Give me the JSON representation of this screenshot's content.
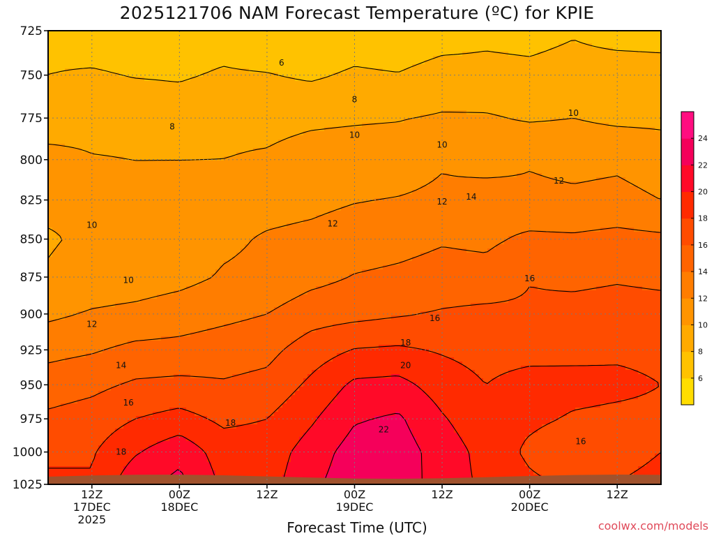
{
  "title": "2025121706 NAM Forecast Temperature (ºC) for KPIE",
  "credit": "coolwx.com/models",
  "colors": {
    "terrain": "#a0522d",
    "frame": "#000000",
    "grid": "#7a7a7a",
    "contour": "#000000",
    "credit": "#e04a5a"
  },
  "chart_data": {
    "type": "heatmap",
    "title": "2025121706 NAM Forecast Temperature (ºC) for KPIE",
    "xlabel": "Forecast Time (UTC)",
    "ylabel": "",
    "ylog": true,
    "y_ticks": [
      725,
      750,
      775,
      800,
      825,
      850,
      875,
      900,
      925,
      950,
      975,
      1000,
      1025
    ],
    "ylim": [
      725,
      1025
    ],
    "x_ticks": [
      {
        "hour": 6,
        "lines": [
          "12Z",
          "17DEC",
          "2025"
        ]
      },
      {
        "hour": 18,
        "lines": [
          "00Z",
          "18DEC"
        ]
      },
      {
        "hour": 30,
        "lines": [
          "12Z"
        ]
      },
      {
        "hour": 42,
        "lines": [
          "00Z",
          "19DEC"
        ]
      },
      {
        "hour": 54,
        "lines": [
          "12Z"
        ]
      },
      {
        "hour": 66,
        "lines": [
          "00Z",
          "20DEC"
        ]
      },
      {
        "hour": 78,
        "lines": [
          "12Z"
        ]
      }
    ],
    "xlim": [
      0,
      84
    ],
    "grid": true,
    "colorbar": {
      "ticks": [
        6,
        8,
        10,
        12,
        14,
        16,
        18,
        20,
        22,
        24
      ],
      "levels": [
        4,
        6,
        8,
        10,
        12,
        14,
        16,
        18,
        20,
        22,
        24,
        26
      ],
      "colors": [
        "#ffdd00",
        "#ffc200",
        "#ffaa00",
        "#ff9400",
        "#ff7d00",
        "#ff6400",
        "#ff4c00",
        "#ff2a00",
        "#ff0a28",
        "#f5005a",
        "#ff0d80"
      ],
      "placement": "right"
    },
    "pressure_levels": [
      725,
      750,
      775,
      800,
      825,
      850,
      875,
      900,
      925,
      950,
      975,
      1000,
      1025
    ],
    "hours": [
      0,
      6,
      12,
      18,
      24,
      30,
      36,
      42,
      48,
      54,
      60,
      66,
      72,
      78,
      84
    ],
    "temperature": [
      [
        7.5,
        7.0,
        7.0,
        7.0,
        7.2,
        6.5,
        6.2,
        6.8,
        6.5,
        7.0,
        7.5,
        7.3,
        7.8,
        7.2,
        7.2
      ],
      [
        8.0,
        8.2,
        7.9,
        7.8,
        8.2,
        8.1,
        7.7,
        8.3,
        8.1,
        8.8,
        8.6,
        8.5,
        8.8,
        9.0,
        8.8
      ],
      [
        9.0,
        9.4,
        9.3,
        9.0,
        9.6,
        9.5,
        9.7,
        9.8,
        9.9,
        10.2,
        10.2,
        9.8,
        10.0,
        9.6,
        9.6
      ],
      [
        10.6,
        10.1,
        10.0,
        10.0,
        10.0,
        10.2,
        10.7,
        10.9,
        11.0,
        11.8,
        11.0,
        11.8,
        11.4,
        11.6,
        11.0
      ],
      [
        10.5,
        10.3,
        10.0,
        10.3,
        11.2,
        11.3,
        11.5,
        11.9,
        12.1,
        12.4,
        13.2,
        12.5,
        12.4,
        12.6,
        12.0
      ],
      [
        9.8,
        10.4,
        10.6,
        10.8,
        11.6,
        12.2,
        12.5,
        13.0,
        13.3,
        13.8,
        13.6,
        14.4,
        14.3,
        14.6,
        14.4
      ],
      [
        10.2,
        10.8,
        11.0,
        11.4,
        12.2,
        12.5,
        13.4,
        14.1,
        14.4,
        14.8,
        14.7,
        15.9,
        15.6,
        15.8,
        15.6
      ],
      [
        11.6,
        12.2,
        12.5,
        13.0,
        13.5,
        14.0,
        15.1,
        15.4,
        15.8,
        16.2,
        16.5,
        16.3,
        16.6,
        16.8,
        16.7
      ],
      [
        13.4,
        13.8,
        14.5,
        14.6,
        15.0,
        15.4,
        17.0,
        18.1,
        18.3,
        17.8,
        17.3,
        17.3,
        17.5,
        17.7,
        17.6
      ],
      [
        15.0,
        15.5,
        16.3,
        16.5,
        16.2,
        16.6,
        18.4,
        20.4,
        20.6,
        19.1,
        18.0,
        18.8,
        18.6,
        18.4,
        18.0
      ],
      [
        16.4,
        16.9,
        18.0,
        18.7,
        17.6,
        18.0,
        19.7,
        21.8,
        22.3,
        20.2,
        18.6,
        18.4,
        17.8,
        17.6,
        17.6
      ],
      [
        17.6,
        17.8,
        19.8,
        21.4,
        19.0,
        18.9,
        20.9,
        22.9,
        23.0,
        21.1,
        19.3,
        17.6,
        16.6,
        16.8,
        18.0
      ],
      [
        18.4,
        18.2,
        21.5,
        22.6,
        19.6,
        19.2,
        21.5,
        23.3,
        23.2,
        21.0,
        19.6,
        18.4,
        17.7,
        18.1,
        19.0
      ]
    ],
    "contour_labels": [
      {
        "text": "6",
        "x": 32.0,
        "y": 743
      },
      {
        "text": "8",
        "x": 42.0,
        "y": 764
      },
      {
        "text": "8",
        "x": 17.0,
        "y": 780
      },
      {
        "text": "10",
        "x": 72.0,
        "y": 772
      },
      {
        "text": "10",
        "x": 42.0,
        "y": 785
      },
      {
        "text": "10",
        "x": 54.0,
        "y": 791
      },
      {
        "text": "12",
        "x": 70.0,
        "y": 813
      },
      {
        "text": "12",
        "x": 54.0,
        "y": 826
      },
      {
        "text": "14",
        "x": 58.0,
        "y": 823
      },
      {
        "text": "12",
        "x": 39.0,
        "y": 840
      },
      {
        "text": "10",
        "x": 6.0,
        "y": 841
      },
      {
        "text": "10",
        "x": 11.0,
        "y": 877
      },
      {
        "text": "16",
        "x": 66.0,
        "y": 876
      },
      {
        "text": "16",
        "x": 53.0,
        "y": 903
      },
      {
        "text": "12",
        "x": 6.0,
        "y": 907
      },
      {
        "text": "18",
        "x": 49.0,
        "y": 920
      },
      {
        "text": "14",
        "x": 10.0,
        "y": 936
      },
      {
        "text": "20",
        "x": 49.0,
        "y": 936
      },
      {
        "text": "16",
        "x": 11.0,
        "y": 963
      },
      {
        "text": "18",
        "x": 25.0,
        "y": 978
      },
      {
        "text": "22",
        "x": 46.0,
        "y": 983
      },
      {
        "text": "16",
        "x": 73.0,
        "y": 992
      },
      {
        "text": "18",
        "x": 10.0,
        "y": 1000
      }
    ]
  }
}
